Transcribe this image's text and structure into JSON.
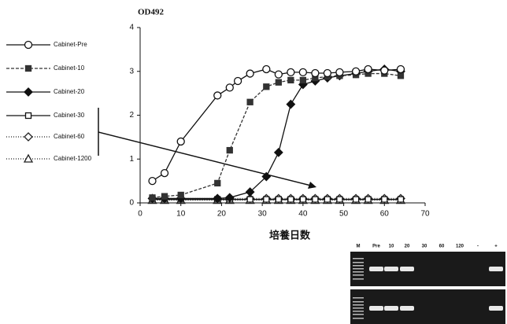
{
  "chart_data": {
    "type": "line",
    "title": "OD492",
    "x_label": "培養日数",
    "xlim": [
      0,
      70
    ],
    "xticks": [
      0,
      10,
      20,
      30,
      40,
      50,
      60,
      70
    ],
    "ylim": [
      0,
      4
    ],
    "yticks": [
      0,
      1,
      2,
      3,
      4
    ],
    "series": [
      {
        "name": "Cabinet-Pre",
        "color": "#111111",
        "marker": "circle",
        "filled": false,
        "dash": "none",
        "x": [
          3,
          6,
          10,
          19,
          22,
          24,
          27,
          31,
          34,
          37,
          40,
          43,
          46,
          49,
          53,
          56,
          60,
          64
        ],
        "values": [
          0.5,
          0.68,
          1.4,
          2.45,
          2.63,
          2.78,
          2.95,
          3.05,
          2.93,
          2.98,
          2.98,
          2.96,
          2.96,
          2.98,
          3.0,
          3.05,
          3.02,
          3.05
        ]
      },
      {
        "name": "Cabinet-10",
        "color": "#333333",
        "marker": "square",
        "filled": true,
        "dash": "4,2",
        "x": [
          3,
          6,
          10,
          19,
          22,
          27,
          31,
          34,
          37,
          40,
          43,
          46,
          49,
          53,
          56,
          60,
          64
        ],
        "values": [
          0.12,
          0.15,
          0.18,
          0.45,
          1.2,
          2.3,
          2.65,
          2.75,
          2.8,
          2.8,
          2.85,
          2.88,
          2.9,
          2.92,
          2.95,
          2.95,
          2.9
        ]
      },
      {
        "name": "Cabinet-20",
        "color": "#111111",
        "marker": "diamond",
        "filled": true,
        "dash": "none",
        "x": [
          3,
          6,
          10,
          19,
          22,
          27,
          31,
          34,
          37,
          40,
          43,
          46,
          49,
          53,
          56,
          60,
          64
        ],
        "values": [
          0.1,
          0.1,
          0.1,
          0.1,
          0.12,
          0.25,
          0.6,
          1.15,
          2.25,
          2.7,
          2.78,
          2.85,
          2.9,
          2.95,
          3.0,
          3.05,
          3.0
        ]
      },
      {
        "name": "Cabinet-30",
        "color": "#111111",
        "marker": "square",
        "filled": false,
        "dash": "none",
        "x": [
          3,
          6,
          10,
          19,
          22,
          27,
          31,
          34,
          37,
          40,
          43,
          46,
          49,
          53,
          56,
          60,
          64
        ],
        "values": [
          0.08,
          0.08,
          0.08,
          0.08,
          0.08,
          0.08,
          0.08,
          0.08,
          0.08,
          0.08,
          0.08,
          0.08,
          0.08,
          0.08,
          0.08,
          0.08,
          0.08
        ]
      },
      {
        "name": "Cabinet-60",
        "color": "#222222",
        "marker": "diamond",
        "filled": false,
        "dash": "1,2",
        "x": [
          3,
          6,
          10,
          19,
          22,
          27,
          31,
          34,
          37,
          40,
          43,
          46,
          49,
          53,
          56,
          60,
          64
        ],
        "values": [
          0.1,
          0.1,
          0.1,
          0.1,
          0.1,
          0.1,
          0.1,
          0.1,
          0.1,
          0.1,
          0.1,
          0.1,
          0.1,
          0.1,
          0.1,
          0.1,
          0.1
        ]
      },
      {
        "name": "Cabinet-1200",
        "color": "#222222",
        "marker": "triangle",
        "filled": false,
        "dash": "1,2",
        "x": [
          3,
          6,
          10,
          19,
          22,
          27,
          31,
          34,
          37,
          40,
          43,
          46,
          49,
          53,
          56,
          60,
          64
        ],
        "values": [
          0.06,
          0.06,
          0.06,
          0.06,
          0.06,
          0.06,
          0.06,
          0.06,
          0.06,
          0.06,
          0.06,
          0.06,
          0.06,
          0.06,
          0.06,
          0.06,
          0.06
        ]
      }
    ]
  },
  "gel": {
    "lanes": [
      "M",
      "Pre",
      "10",
      "20",
      "30",
      "60",
      "120",
      "-",
      "+"
    ]
  }
}
